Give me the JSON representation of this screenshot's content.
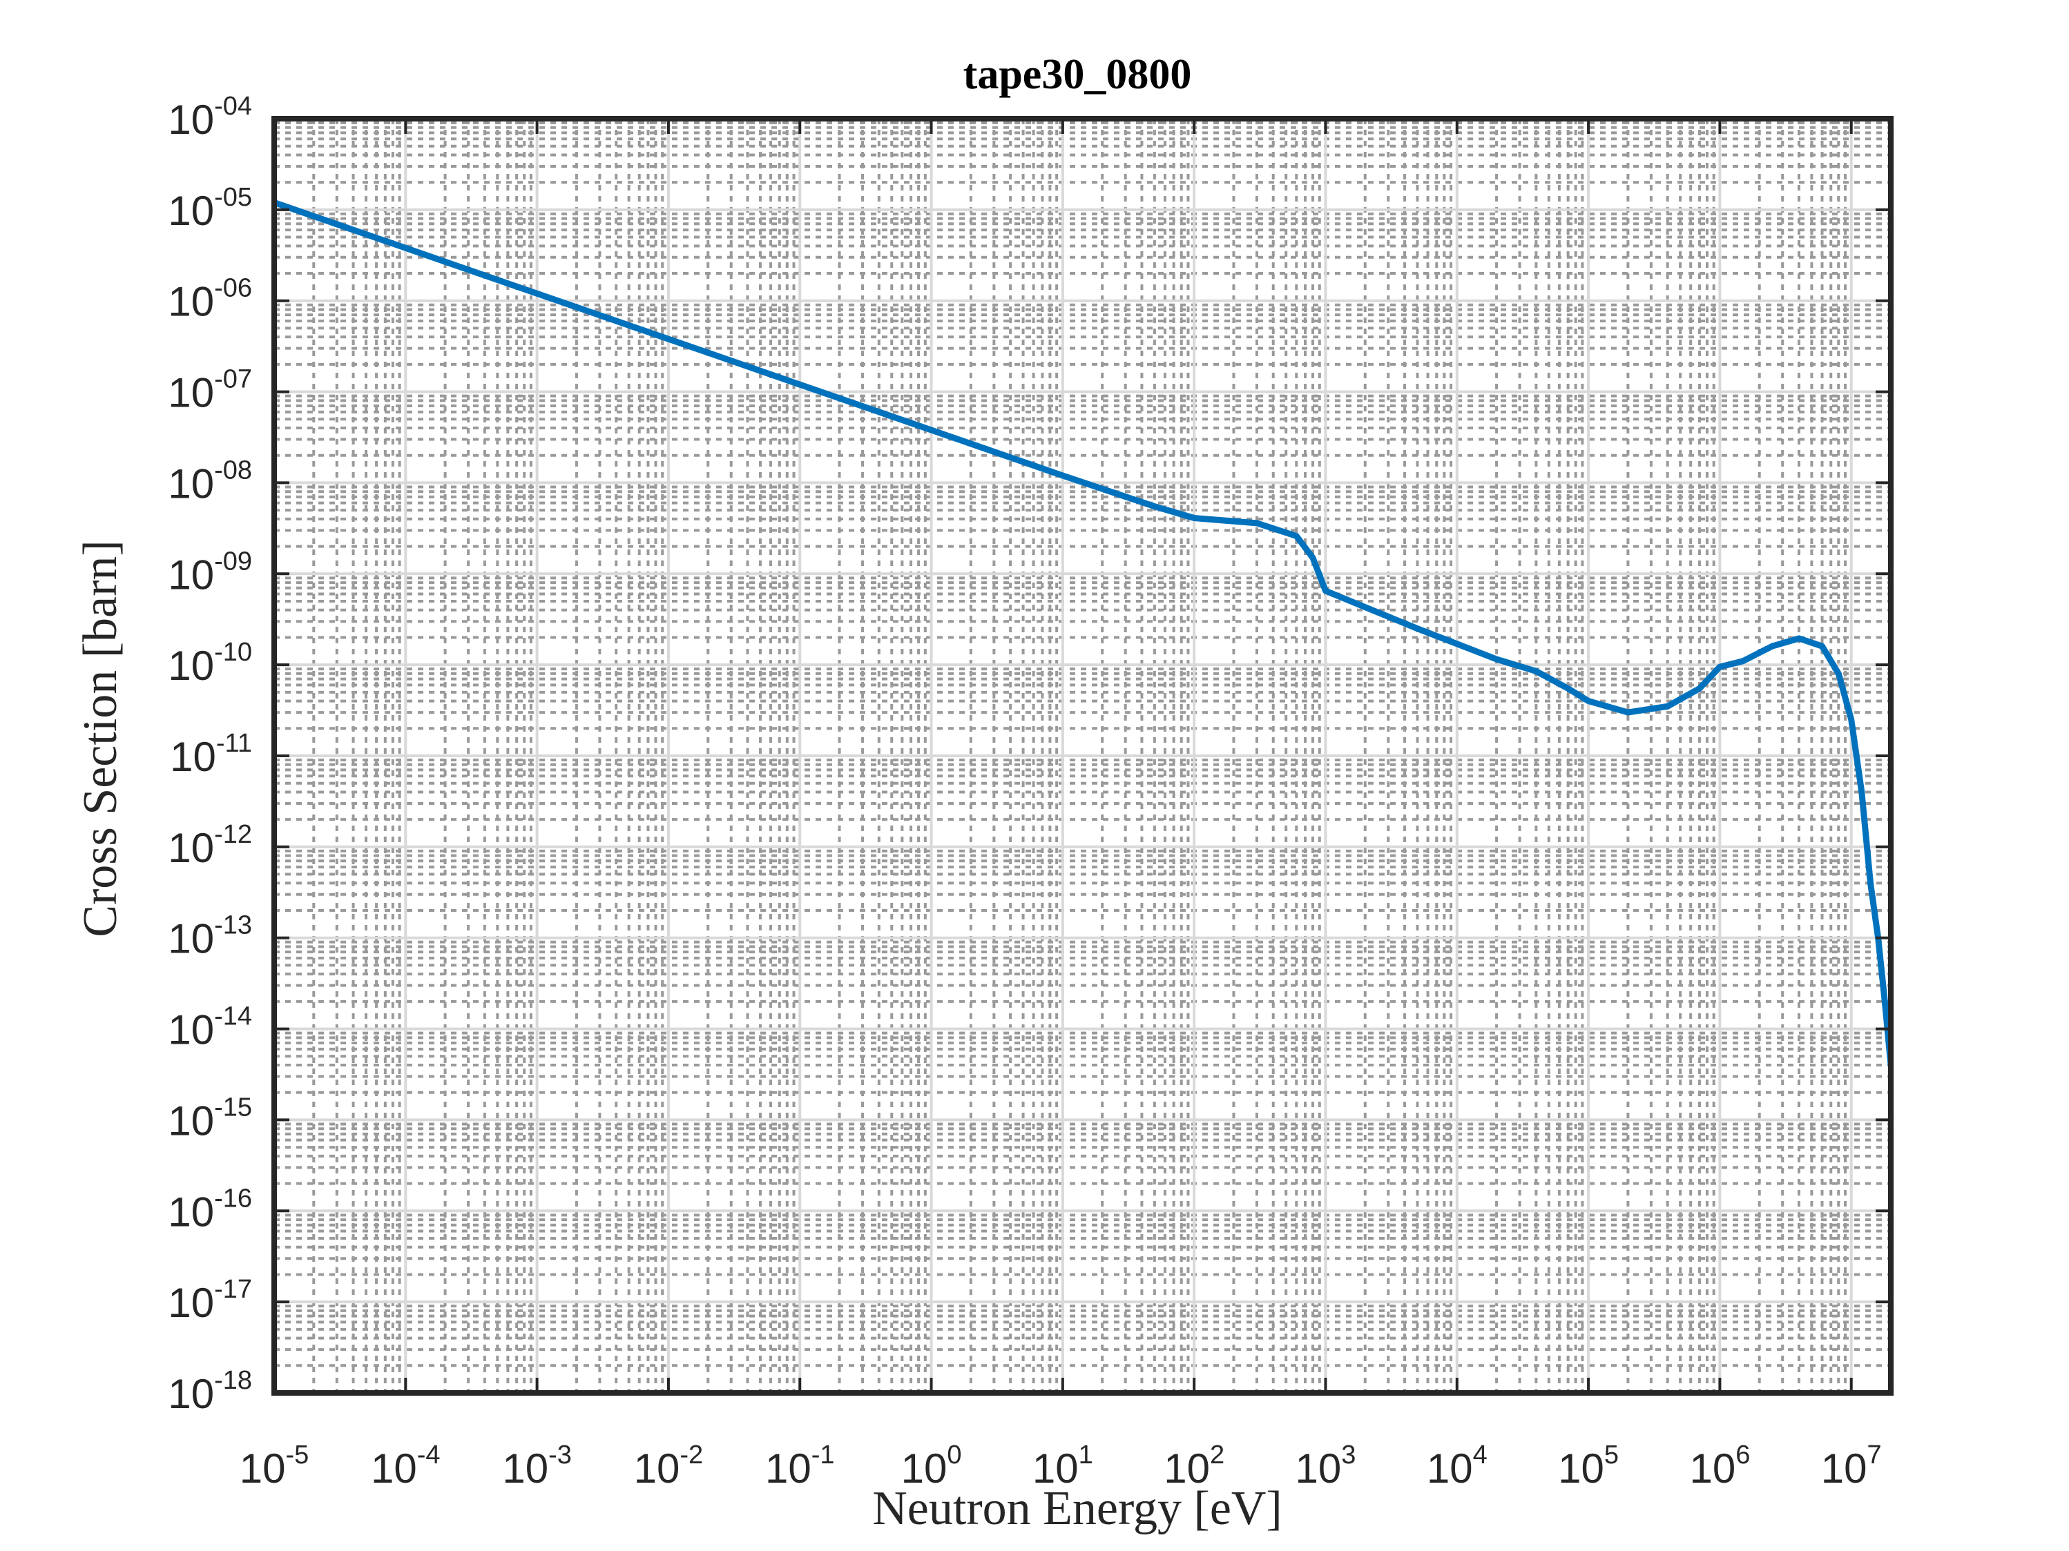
{
  "chart_data": {
    "type": "line",
    "title": "tape30_0800",
    "xlabel": "Neutron Energy [eV]",
    "ylabel": "Cross Section [barn]",
    "xscale": "log",
    "yscale": "log",
    "xlim": [
      1e-05,
      20000000.0
    ],
    "ylim": [
      1e-18,
      0.0001
    ],
    "grid": "major and minor, dotted gray",
    "x_tick_labels": [
      "10",
      "10",
      "10",
      "10",
      "10",
      "10",
      "10",
      "10",
      "10",
      "10",
      "10",
      "10",
      "10"
    ],
    "x_tick_exponents": [
      "-5",
      "-4",
      "-3",
      "-2",
      "-1",
      "0",
      "1",
      "2",
      "3",
      "4",
      "5",
      "6",
      "7"
    ],
    "x_tick_values": [
      1e-05,
      0.0001,
      0.001,
      0.01,
      0.1,
      1,
      10,
      100,
      1000,
      10000,
      100000,
      1000000,
      10000000
    ],
    "y_tick_labels": [
      "10",
      "10",
      "10",
      "10",
      "10",
      "10",
      "10",
      "10",
      "10",
      "10",
      "10",
      "10",
      "10",
      "10",
      "10"
    ],
    "y_tick_exponents": [
      "-04",
      "-05",
      "-06",
      "-07",
      "-08",
      "-09",
      "-10",
      "-11",
      "-12",
      "-13",
      "-14",
      "-15",
      "-16",
      "-17",
      "-18"
    ],
    "y_tick_values": [
      0.0001,
      1e-05,
      1e-06,
      1e-07,
      1e-08,
      1e-09,
      1e-10,
      1e-11,
      1e-12,
      1e-13,
      1e-14,
      1e-15,
      1e-16,
      1e-17,
      1e-18
    ],
    "series": [
      {
        "color": "#0072BD",
        "x": [
          1e-05,
          0.0001,
          0.001,
          0.01,
          0.1,
          1,
          10,
          50,
          100,
          300,
          600,
          800,
          1000,
          2000,
          5000,
          10000,
          20000,
          40000,
          70000,
          100000,
          200000,
          400000,
          700000,
          1000000,
          1500000,
          2500000,
          4000000,
          6000000,
          8000000,
          10000000,
          12000000,
          14000000,
          16000000,
          18000000,
          20000000
        ],
        "y": [
          1.2e-05,
          3.8e-06,
          1.2e-06,
          3.8e-07,
          1.2e-07,
          3.8e-08,
          1.2e-08,
          5.5e-09,
          4.1e-09,
          3.6e-09,
          2.6e-09,
          1.5e-09,
          6.5e-10,
          4.3e-10,
          2.5e-10,
          1.7e-10,
          1.15e-10,
          8.5e-11,
          5.5e-11,
          4e-11,
          3e-11,
          3.5e-11,
          5.5e-11,
          9.5e-11,
          1.1e-10,
          1.6e-10,
          1.95e-10,
          1.6e-10,
          8e-11,
          2.5e-11,
          4e-12,
          4e-13,
          1e-13,
          2e-14,
          4e-15
        ]
      }
    ]
  }
}
